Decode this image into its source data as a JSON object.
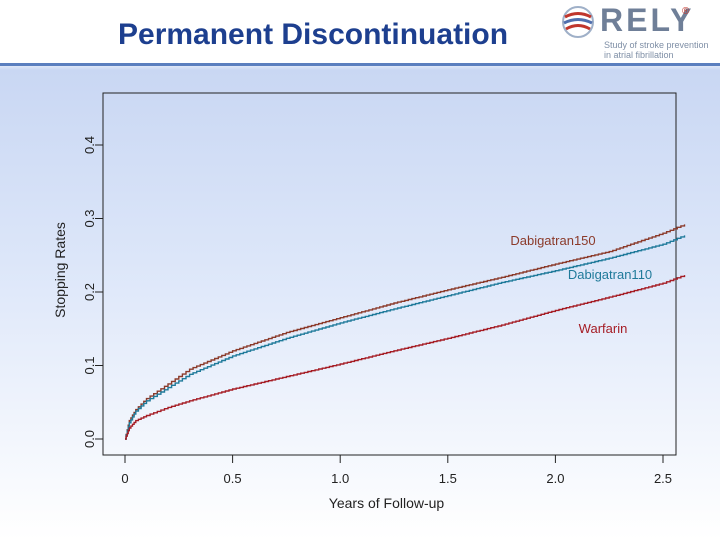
{
  "slide": {
    "title": "Permanent Discontinuation"
  },
  "logo": {
    "word": "RELY",
    "registered": "®",
    "tagline_1": "Study of stroke prevention",
    "tagline_2": "in atrial fibrillation",
    "colors": {
      "brand_gray": "#6f7f98",
      "brand_red": "#c0362c"
    }
  },
  "chart_data": {
    "type": "line",
    "title": "",
    "xlabel": "Years of Follow-up",
    "ylabel": "Stopping Rates",
    "xlim": [
      0,
      2.6
    ],
    "ylim": [
      -0.01,
      0.47
    ],
    "x_ticks": [
      0,
      0.5,
      1.0,
      1.5,
      2.0,
      2.5
    ],
    "x_tick_labels": [
      "0",
      "0.5",
      "1.0",
      "1.5",
      "2.0",
      "2.5"
    ],
    "y_ticks": [
      0.0,
      0.1,
      0.2,
      0.3,
      0.4
    ],
    "y_tick_labels": [
      "0.0",
      "0.1",
      "0.2",
      "0.3",
      "0.4"
    ],
    "grid": false,
    "series": [
      {
        "name": "Dabigatran150",
        "color": "#8b3a2a",
        "x": [
          0,
          0.02,
          0.05,
          0.1,
          0.2,
          0.3,
          0.5,
          0.75,
          1.0,
          1.25,
          1.5,
          1.75,
          2.0,
          2.25,
          2.5,
          2.6
        ],
        "y": [
          0,
          0.025,
          0.04,
          0.055,
          0.075,
          0.095,
          0.12,
          0.145,
          0.165,
          0.185,
          0.203,
          0.22,
          0.238,
          0.255,
          0.28,
          0.292
        ]
      },
      {
        "name": "Dabigatran110",
        "color": "#1f7a9a",
        "x": [
          0,
          0.02,
          0.05,
          0.1,
          0.2,
          0.3,
          0.5,
          0.75,
          1.0,
          1.25,
          1.5,
          1.75,
          2.0,
          2.25,
          2.5,
          2.6
        ],
        "y": [
          0,
          0.022,
          0.038,
          0.052,
          0.07,
          0.088,
          0.113,
          0.137,
          0.158,
          0.177,
          0.195,
          0.213,
          0.229,
          0.246,
          0.265,
          0.277
        ]
      },
      {
        "name": "Warfarin",
        "color": "#a51c24",
        "x": [
          0,
          0.02,
          0.05,
          0.1,
          0.2,
          0.3,
          0.5,
          0.75,
          1.0,
          1.25,
          1.5,
          1.75,
          2.0,
          2.25,
          2.5,
          2.6
        ],
        "y": [
          0,
          0.015,
          0.025,
          0.032,
          0.043,
          0.052,
          0.068,
          0.085,
          0.102,
          0.12,
          0.137,
          0.155,
          0.175,
          0.193,
          0.212,
          0.223
        ]
      }
    ],
    "annotations": [
      {
        "text": "Dabigatran150",
        "series": 0
      },
      {
        "text": "Dabigatran110",
        "series": 1
      },
      {
        "text": "Warfarin",
        "series": 2
      }
    ]
  }
}
